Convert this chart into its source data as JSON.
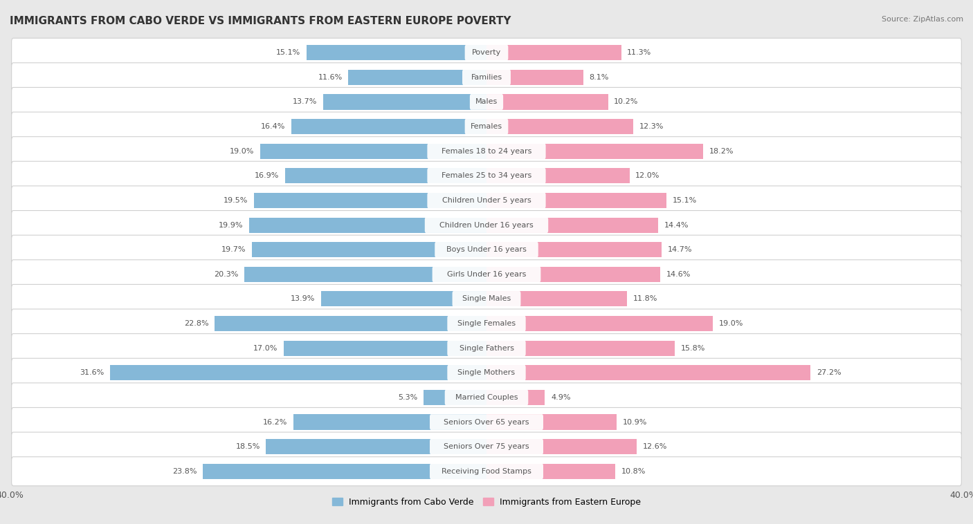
{
  "title": "IMMIGRANTS FROM CABO VERDE VS IMMIGRANTS FROM EASTERN EUROPE POVERTY",
  "source": "Source: ZipAtlas.com",
  "categories": [
    "Poverty",
    "Families",
    "Males",
    "Females",
    "Females 18 to 24 years",
    "Females 25 to 34 years",
    "Children Under 5 years",
    "Children Under 16 years",
    "Boys Under 16 years",
    "Girls Under 16 years",
    "Single Males",
    "Single Females",
    "Single Fathers",
    "Single Mothers",
    "Married Couples",
    "Seniors Over 65 years",
    "Seniors Over 75 years",
    "Receiving Food Stamps"
  ],
  "cabo_verde": [
    15.1,
    11.6,
    13.7,
    16.4,
    19.0,
    16.9,
    19.5,
    19.9,
    19.7,
    20.3,
    13.9,
    22.8,
    17.0,
    31.6,
    5.3,
    16.2,
    18.5,
    23.8
  ],
  "eastern_europe": [
    11.3,
    8.1,
    10.2,
    12.3,
    18.2,
    12.0,
    15.1,
    14.4,
    14.7,
    14.6,
    11.8,
    19.0,
    15.8,
    27.2,
    4.9,
    10.9,
    12.6,
    10.8
  ],
  "cabo_verde_color": "#85b8d8",
  "eastern_europe_color": "#f2a0b8",
  "xlim": 40.0,
  "page_bg": "#e8e8e8",
  "row_bg": "#ffffff",
  "row_border": "#d0d0d0",
  "label_color": "#444444",
  "value_color": "#555555",
  "legend_cabo_verde": "Immigrants from Cabo Verde",
  "legend_eastern_europe": "Immigrants from Eastern Europe",
  "cat_label_bg": "#ffffff",
  "cat_label_color": "#555555"
}
